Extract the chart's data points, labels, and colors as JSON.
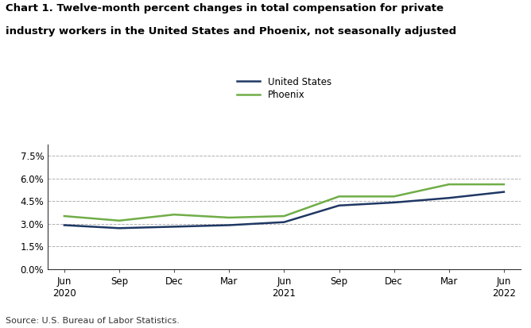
{
  "title_line1": "Chart 1. Twelve-month percent changes in total compensation for private",
  "title_line2": "industry workers in the United States and Phoenix, not seasonally adjusted",
  "x_labels": [
    "Jun\n2020",
    "Sep",
    "Dec",
    "Mar",
    "Jun\n2021",
    "Sep",
    "Dec",
    "Mar",
    "Jun\n2022"
  ],
  "x_positions": [
    0,
    1,
    2,
    3,
    4,
    5,
    6,
    7,
    8
  ],
  "us_values": [
    2.9,
    2.7,
    2.8,
    2.9,
    3.1,
    4.2,
    4.4,
    4.7,
    5.1
  ],
  "phoenix_values": [
    3.5,
    3.2,
    3.6,
    3.4,
    3.5,
    4.8,
    4.8,
    5.6,
    5.6
  ],
  "us_color": "#1f3864",
  "phoenix_color": "#70ad47",
  "us_label": "United States",
  "phoenix_label": "Phoenix",
  "ylim": [
    0.0,
    8.25
  ],
  "yticks": [
    0.0,
    1.5,
    3.0,
    4.5,
    6.0,
    7.5
  ],
  "ytick_labels": [
    "0.0%",
    "1.5%",
    "3.0%",
    "4.5%",
    "6.0%",
    "7.5%"
  ],
  "source": "Source: U.S. Bureau of Labor Statistics.",
  "bg_color": "#ffffff",
  "grid_color": "#b0b0b0",
  "line_width": 1.8
}
